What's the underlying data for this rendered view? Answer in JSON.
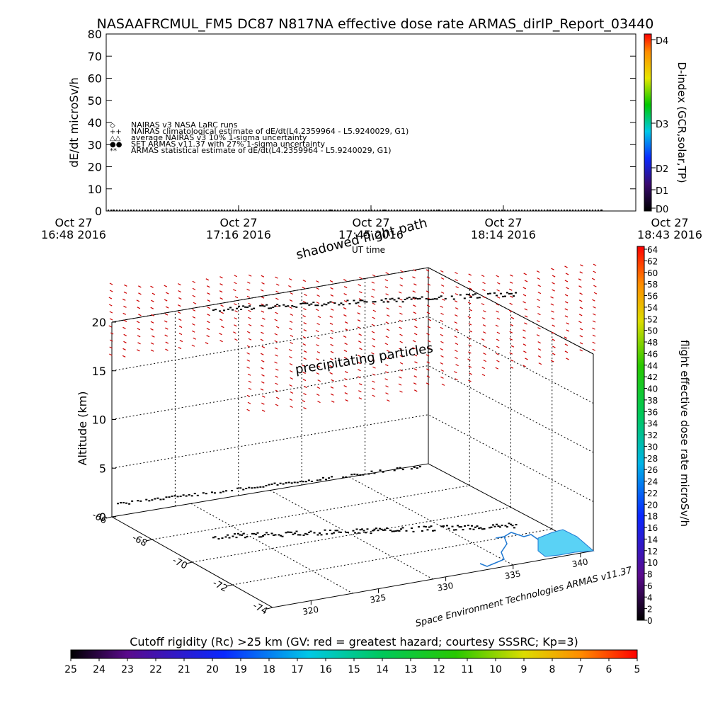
{
  "title": "NASAAFRCMUL_FM5 DC87 N817NA effective dose rate ARMAS_dirIP_Report_03440",
  "chart_data": [
    {
      "type": "line",
      "ylabel": "dE/dt microSv/h",
      "ylim": [
        0,
        80
      ],
      "yticks": [
        0,
        10,
        20,
        30,
        40,
        50,
        60,
        70,
        80
      ],
      "xlabel": "UT time",
      "xticks": [
        {
          "date": "Oct 27",
          "time": "16:48 2016"
        },
        {
          "date": "Oct 27",
          "time": "17:16 2016"
        },
        {
          "date": "Oct 27",
          "time": "17:45 2016"
        },
        {
          "date": "Oct 27",
          "time": "18:14 2016"
        },
        {
          "date": "Oct 27",
          "time": "18:43 2016"
        }
      ],
      "legend": [
        {
          "symbol": "◇",
          "label": "NAIRAS v3 NASA LaRC runs"
        },
        {
          "symbol": "++",
          "label": "NAIRAS climatological estimate of dE/dt(L4.2359964 - L5.9240029, G1)"
        },
        {
          "symbol": "△△",
          "label": "average NAIRAS v3 10% 1-sigma uncertainty"
        },
        {
          "symbol": "●●",
          "label": "SET ARMAS v11.37 with 27% 1-sigma uncertainty"
        },
        {
          "symbol": "**",
          "label": "ARMAS statistical estimate of dE/dt(L4.2359964 - L5.9240029, G1)"
        }
      ],
      "series": [
        {
          "values": [
            0,
            0,
            0,
            0,
            0,
            0,
            0,
            0,
            0,
            0
          ]
        }
      ],
      "colorbar": {
        "label": "D-index (GCR,solar,TP)",
        "ticks": [
          "D0",
          "D1",
          "D2",
          "D3",
          "D4"
        ]
      }
    },
    {
      "type": "scatter",
      "zlabel": "Altitude (km)",
      "zticks": [
        0,
        5,
        10,
        15,
        20
      ],
      "latticks": [
        -66,
        -68,
        -70,
        -72,
        -74
      ],
      "lonticks": [
        320,
        325,
        330,
        335,
        340
      ],
      "annotations": [
        "shadowed flight path",
        "UT time",
        "precipitating particles"
      ],
      "colorbar": {
        "label": "flight effective dose rate microSv/h",
        "ticks": [
          0,
          2,
          4,
          6,
          8,
          10,
          12,
          14,
          16,
          18,
          20,
          22,
          24,
          26,
          28,
          30,
          32,
          34,
          36,
          38,
          40,
          42,
          44,
          46,
          48,
          50,
          52,
          54,
          56,
          58,
          60,
          62,
          64
        ]
      },
      "credit": "Space Environment Technologies ARMAS v11.37"
    },
    {
      "type": "heatmap",
      "label": "Cutoff rigidity (Rc) >25 km (GV: red = greatest hazard; courtesy SSSRC; Kp=3)",
      "ticks": [
        25,
        24,
        23,
        22,
        21,
        20,
        19,
        18,
        17,
        16,
        15,
        14,
        13,
        12,
        11,
        10,
        9,
        8,
        7,
        6,
        5
      ]
    }
  ],
  "colors": {
    "particles": "#cc0000",
    "flight_path": "#000000",
    "coast": "#1e78d2",
    "land": "#5ad2f5"
  }
}
